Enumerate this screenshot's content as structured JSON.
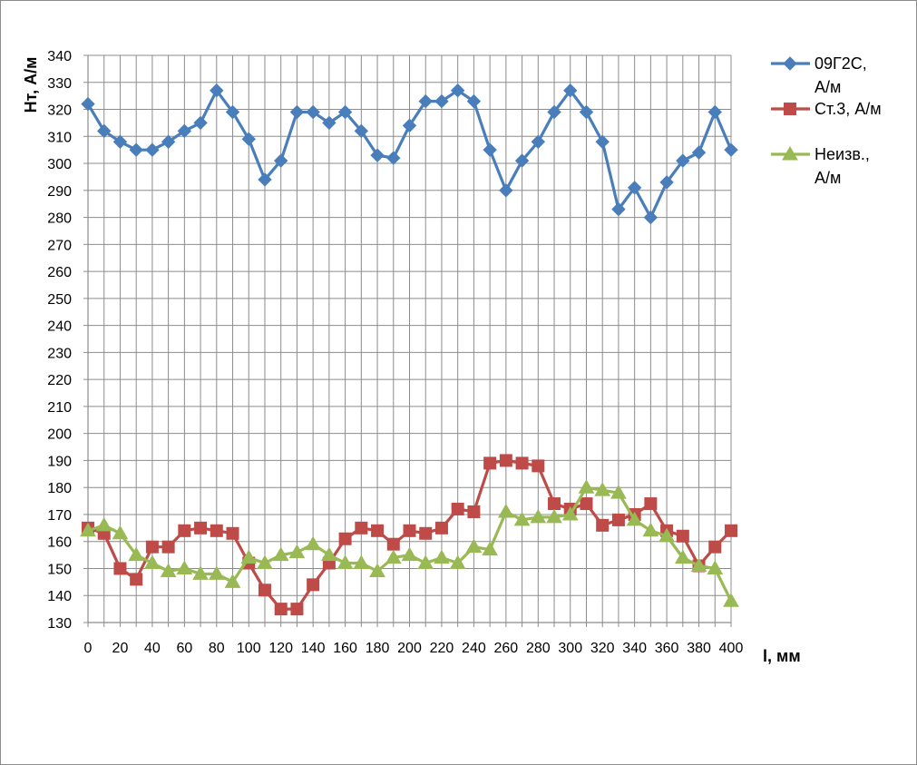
{
  "chart_data": {
    "type": "line",
    "title": "",
    "xlabel": "l, мм",
    "ylabel": "Нт, А/м",
    "xlim": [
      0,
      400
    ],
    "ylim": [
      130,
      340
    ],
    "grid": true,
    "legend_position": "right",
    "x_ticks": [
      0,
      20,
      40,
      60,
      80,
      100,
      120,
      140,
      160,
      180,
      200,
      220,
      240,
      260,
      280,
      300,
      320,
      340,
      360,
      380,
      400
    ],
    "y_ticks": [
      130,
      140,
      150,
      160,
      170,
      180,
      190,
      200,
      210,
      220,
      230,
      240,
      250,
      260,
      270,
      280,
      290,
      300,
      310,
      320,
      330,
      340
    ],
    "x": [
      0,
      10,
      20,
      30,
      40,
      50,
      60,
      70,
      80,
      90,
      100,
      110,
      120,
      130,
      140,
      150,
      160,
      170,
      180,
      190,
      200,
      210,
      220,
      230,
      240,
      250,
      260,
      270,
      280,
      290,
      300,
      310,
      320,
      330,
      340,
      350,
      360,
      370,
      380,
      390,
      400
    ],
    "series": [
      {
        "name": "09Г2С, А/м",
        "legend_lines": [
          "09Г2С,",
          "А/м"
        ],
        "color": "#4a7ebb",
        "marker": "diamond",
        "values": [
          322,
          312,
          308,
          305,
          305,
          308,
          312,
          315,
          327,
          319,
          309,
          294,
          301,
          319,
          319,
          315,
          319,
          312,
          303,
          302,
          314,
          323,
          323,
          327,
          323,
          305,
          290,
          301,
          308,
          319,
          327,
          319,
          308,
          283,
          291,
          280,
          293,
          301,
          304,
          319,
          305
        ]
      },
      {
        "name": "Ст.3, А/м",
        "legend_lines": [
          "Ст.3, А/м"
        ],
        "color": "#be4b48",
        "marker": "square",
        "values": [
          165,
          163,
          150,
          146,
          158,
          158,
          164,
          165,
          164,
          163,
          152,
          142,
          135,
          135,
          144,
          152,
          161,
          165,
          164,
          159,
          164,
          163,
          165,
          172,
          171,
          189,
          190,
          189,
          188,
          174,
          172,
          174,
          166,
          168,
          170,
          174,
          164,
          162,
          151,
          158,
          164
        ]
      },
      {
        "name": "Неизв., А/м",
        "legend_lines": [
          "Неизв.,",
          "А/м"
        ],
        "color": "#98b954",
        "marker": "triangle",
        "values": [
          164,
          166,
          163,
          155,
          152,
          149,
          150,
          148,
          148,
          145,
          154,
          152,
          155,
          156,
          159,
          155,
          152,
          152,
          149,
          154,
          155,
          152,
          154,
          152,
          158,
          157,
          171,
          168,
          169,
          169,
          170,
          180,
          179,
          178,
          168,
          164,
          162,
          154,
          151,
          150,
          138
        ]
      }
    ]
  }
}
